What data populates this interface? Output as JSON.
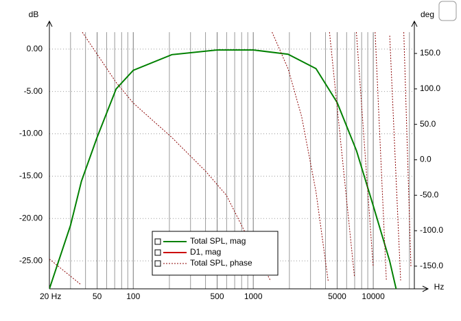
{
  "chart_data": {
    "type": "line",
    "log_x": true,
    "grid": true,
    "y_axis_label": "dB",
    "y2_axis_label": "deg",
    "x_axis_label": "Hz",
    "xlim": [
      20,
      22000
    ],
    "ylim": [
      -28.3,
      2.0
    ],
    "y2lim": [
      -182,
      180
    ],
    "xticks": [
      {
        "value": 20,
        "label": "20 Hz"
      },
      50,
      100,
      500,
      1000,
      5000,
      10000
    ],
    "xminor": [
      30,
      40,
      60,
      70,
      80,
      90,
      200,
      300,
      400,
      600,
      700,
      800,
      900,
      2000,
      3000,
      4000,
      6000,
      7000,
      8000,
      9000,
      20000
    ],
    "yticks": [
      {
        "value": 0,
        "label": "0.00"
      },
      {
        "value": -5,
        "label": "-5.00"
      },
      {
        "value": -10,
        "label": "-10.00"
      },
      {
        "value": -15,
        "label": "-15.00"
      },
      {
        "value": -20,
        "label": "-20.00"
      },
      {
        "value": -25,
        "label": "-25.00"
      }
    ],
    "y2ticks": [
      {
        "value": 150,
        "label": "150.0"
      },
      {
        "value": 100,
        "label": "100.0"
      },
      {
        "value": 50,
        "label": "50.0"
      },
      {
        "value": 0,
        "label": "0.0"
      },
      {
        "value": -50,
        "label": "-50.0"
      },
      {
        "value": -100,
        "label": "-100.0"
      },
      {
        "value": -150,
        "label": "-150.0"
      }
    ],
    "series": [
      {
        "name": "Total SPL, mag",
        "color": "#008000",
        "style": "solid",
        "axis": "y",
        "x": [
          20,
          30,
          37,
          50,
          72,
          100,
          210,
          500,
          1000,
          1950,
          3330,
          5000,
          7250,
          10000,
          13700,
          15500
        ],
        "values": [
          -28.3,
          -20.8,
          -15.6,
          -10.4,
          -4.7,
          -2.5,
          -0.65,
          -0.1,
          -0.1,
          -0.6,
          -2.3,
          -6.3,
          -12,
          -18.5,
          -25,
          -28.3
        ]
      },
      {
        "name": "D1, mag",
        "color": "#cc0000",
        "style": "solid",
        "axis": "y",
        "x": [
          20,
          22000
        ],
        "values": [
          null,
          null
        ]
      },
      {
        "name": "Total SPL, phase",
        "color": "#8b0000",
        "style": "dashed",
        "axis": "y2",
        "x": [
          20,
          36.6,
          37,
          37.6,
          72,
          100,
          208,
          400,
          597,
          888,
          1397,
          1420,
          1434,
          1956,
          2530,
          3330,
          4210,
          4260,
          4320,
          6970,
          7100,
          7230,
          9970,
          10200,
          10360,
          12860,
          13300,
          13720,
          16900,
          17400,
          17970,
          20600
        ],
        "values": [
          -140,
          -176,
          null,
          180,
          109,
          80,
          32,
          -16,
          -50,
          -108,
          -171,
          null,
          180,
          128,
          61,
          -45,
          -171,
          null,
          180,
          -165,
          null,
          180,
          -150,
          null,
          180,
          -170,
          null,
          175,
          -170,
          null,
          180,
          -150
        ]
      }
    ]
  }
}
